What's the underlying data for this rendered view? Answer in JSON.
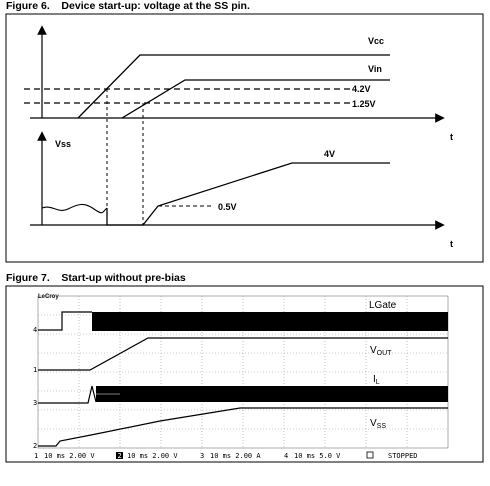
{
  "fig6": {
    "caption": "Figure 6.    Device start-up: voltage at the SS pin.",
    "labels": {
      "vcc": "Vcc",
      "vin": "Vin",
      "v42": "4.2V",
      "v125": "1.25V",
      "t_top": "t",
      "vss": "Vss",
      "v4": "4V",
      "v05": "0.5V",
      "t_bottom": "t"
    }
  },
  "fig7": {
    "caption": "Figure 7.    Start-up without pre-bias",
    "brand": "LeCroy",
    "traces": {
      "lgate": "LGate",
      "vout": "V",
      "vout_sub": "OUT",
      "il": "I",
      "il_sub": "L",
      "vss": "V",
      "vss_sub": "SS"
    },
    "channel_markers": [
      "4",
      "1",
      "3",
      "2"
    ],
    "status_bar": {
      "ch1_num": "1",
      "ch1": "10 ms  2.00 V",
      "ch2_num": "2",
      "ch2": "10 ms  2.00 V",
      "ch3_num": "3",
      "ch3": "10 ms  2.00 A",
      "ch4_num": "4",
      "ch4": "10 ms  5.0 V",
      "state": "STOPPED"
    }
  }
}
